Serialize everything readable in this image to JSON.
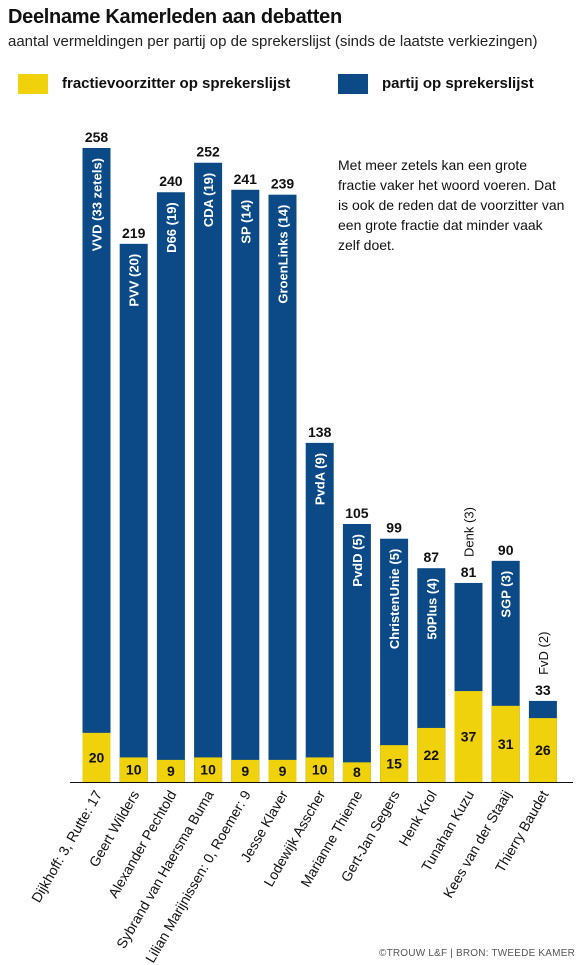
{
  "title": "Deelname Kamerleden aan debatten",
  "subtitle": "aantal vermeldingen per partij op de sprekerslijst (sinds de laatste verkiezingen)",
  "legend": [
    {
      "label": "fractievoorzitter op sprekerslijst",
      "color": "#f0d20c"
    },
    {
      "label": "partij op sprekerslijst",
      "color": "#0b4a86"
    }
  ],
  "note": "Met meer zetels kan een grote fractie vaker het woord voeren. Dat is ook de reden dat de voorzitter van een grote fractie dat minder vaak zelf doet.",
  "credit": "©TROUW L&F | BRON: TWEEDE KAMER",
  "chart_data": {
    "type": "bar",
    "title": "Deelname Kamerleden aan debatten",
    "subtitle": "aantal vermeldingen per partij op de sprekerslijst (sinds de laatste verkiezingen)",
    "categories": [
      "Dijkhoff: 3, Rutte: 17",
      "Geert Wilders",
      "Alexander Pechtold",
      "Sybrand van Haersma Buma",
      "Lilian Marijnissen: 0, Roemer: 9",
      "Jesse Klaver",
      "Lodewijk Asscher",
      "Marianne Thieme",
      "Gert-Jan Segers",
      "Henk Krol",
      "Tunahan Kuzu",
      "Kees van der Staaij",
      "Thierry Baudet"
    ],
    "parties": [
      "VVD (33 zetels)",
      "PVV (20)",
      "D66 (19)",
      "CDA (19)",
      "SP (14)",
      "GroenLinks (14)",
      "PvdA (9)",
      "PvdD (5)",
      "ChristenUnie (5)",
      "50Plus (4)",
      "Denk (3)",
      "SGP (3)",
      "FvD (2)"
    ],
    "series": [
      {
        "name": "partij op sprekerslijst",
        "values": [
          258,
          219,
          240,
          252,
          241,
          239,
          138,
          105,
          99,
          87,
          81,
          90,
          33
        ]
      },
      {
        "name": "fractievoorzitter op sprekerslijst",
        "values": [
          20,
          10,
          9,
          10,
          9,
          9,
          10,
          8,
          15,
          22,
          37,
          31,
          26
        ]
      }
    ],
    "colors": {
      "party": "#0b4a86",
      "leader": "#f0d20c"
    },
    "ylim": [
      0,
      258
    ],
    "grid": false,
    "legend_position": "top-left"
  }
}
